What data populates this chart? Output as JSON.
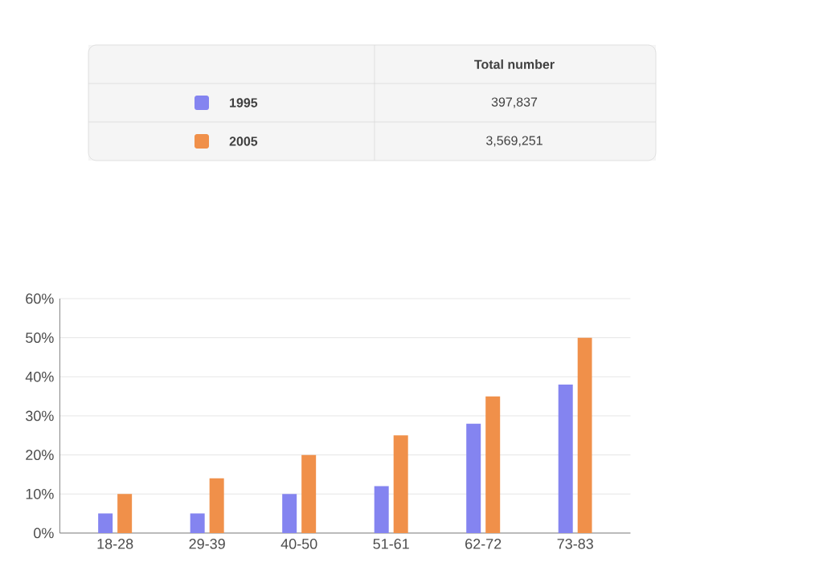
{
  "chart_data": {
    "type": "bar",
    "categories": [
      "18-28",
      "29-39",
      "40-50",
      "51-61",
      "62-72",
      "73-83"
    ],
    "series": [
      {
        "name": "1995",
        "color": "#8484f0",
        "values": [
          5,
          5,
          10,
          12,
          28,
          38
        ]
      },
      {
        "name": "2005",
        "color": "#f0904a",
        "values": [
          10,
          14,
          20,
          25,
          35,
          50
        ]
      }
    ],
    "ylim": [
      0,
      60
    ],
    "yticks": [
      {
        "value": 0,
        "label": "0%"
      },
      {
        "value": 10,
        "label": "10%"
      },
      {
        "value": 20,
        "label": "20%"
      },
      {
        "value": 30,
        "label": "30%"
      },
      {
        "value": 40,
        "label": "40%"
      },
      {
        "value": 50,
        "label": "50%"
      },
      {
        "value": 60,
        "label": "60%"
      }
    ],
    "grid": "y",
    "legend": "top",
    "annotations": [
      "Total number",
      "397,837",
      "3,569,251"
    ]
  }
}
